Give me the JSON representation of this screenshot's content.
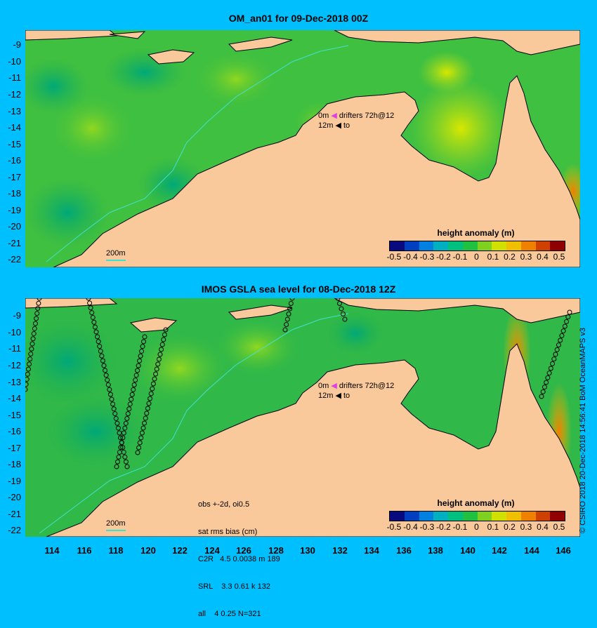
{
  "top_panel": {
    "title": "OM_an01 for 09-Dec-2018 00Z",
    "drifter_line1": "0m",
    "drifter_text1": "drifters 72h@12",
    "drifter_line2": "12m",
    "drifter_text2": "to",
    "depth_label": "200m",
    "legend_title": "height anomaly (m)"
  },
  "bottom_panel": {
    "title": "IMOS GSLA sea level  for 08-Dec-2018 12Z",
    "drifter_line1": "0m",
    "drifter_text1": "drifters 72h@12",
    "drifter_line2": "12m",
    "drifter_text2": "to",
    "depth_label": "200m",
    "legend_title": "height anomaly (m)",
    "stats": [
      "obs +-2d, oi0.5",
      "sat rms bias (cm)",
      "C2R   4.5 0.0038 m 189",
      "SRL    3.3 0.61 k 132",
      "all    4 0.25 N=321"
    ]
  },
  "y_ticks": [
    "-9",
    "-10",
    "-11",
    "-12",
    "-13",
    "-14",
    "-15",
    "-16",
    "-17",
    "-18",
    "-19",
    "-20",
    "-21",
    "-22"
  ],
  "x_ticks": [
    "114",
    "116",
    "118",
    "120",
    "122",
    "124",
    "126",
    "128",
    "130",
    "132",
    "134",
    "136",
    "138",
    "140",
    "142",
    "144",
    "146"
  ],
  "legend_ticks": [
    "-0.5",
    "-0.4",
    "-0.3",
    "-0.2",
    "-0.1",
    "0",
    "0.1",
    "0.2",
    "0.3",
    "0.4",
    "0.5"
  ],
  "colorbar": [
    "#0a0a80",
    "#0040c0",
    "#0080e0",
    "#00b0c0",
    "#00c080",
    "#20c040",
    "#80d020",
    "#d0e000",
    "#f0c000",
    "#f08000",
    "#d04000",
    "#900000"
  ],
  "credit": "© CSIRO 2018  20-Dec-2018 14:56:41 BoM OceanMAPS v3",
  "colors": {
    "land": "#f9c89b",
    "background": "#00bfff",
    "ocean_base": "#40c040",
    "depth_contour": "#40e0d0"
  },
  "map_extent": {
    "lon": [
      112.3,
      147.0
    ],
    "lat": [
      -22.5,
      -8.4
    ]
  }
}
